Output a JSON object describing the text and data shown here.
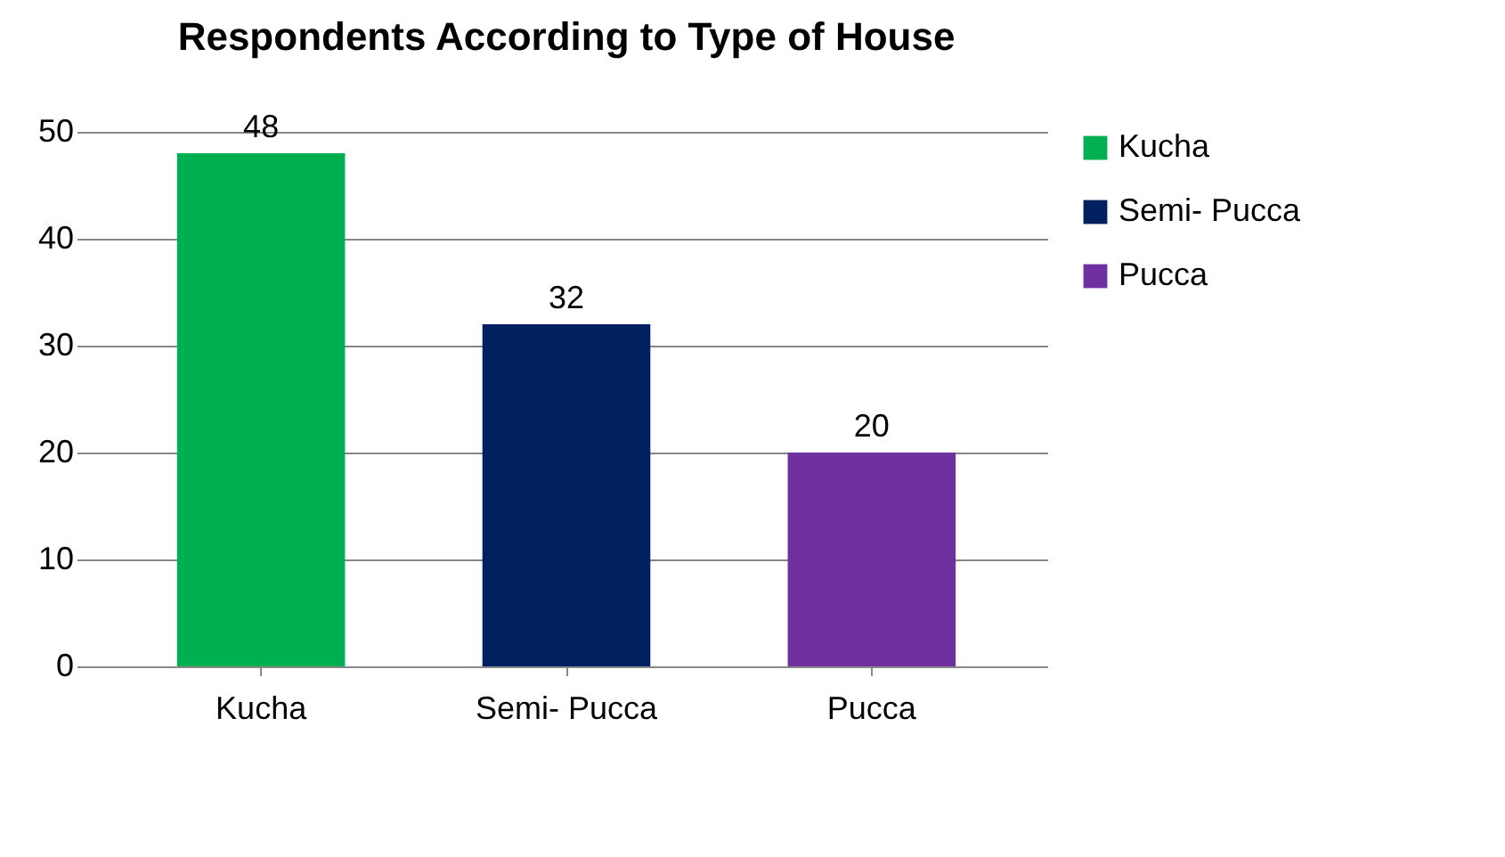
{
  "chart_data": {
    "type": "bar",
    "title": "Respondents According to Type of House",
    "categories": [
      "Kucha",
      "Semi- Pucca",
      "Pucca"
    ],
    "series": [
      {
        "name": "Kucha",
        "color": "#00b050",
        "values": [
          48,
          null,
          null
        ]
      },
      {
        "name": "Semi- Pucca",
        "color": "#002060",
        "values": [
          null,
          32,
          null
        ]
      },
      {
        "name": "Pucca",
        "color": "#7030a0",
        "values": [
          null,
          null,
          20
        ]
      }
    ],
    "ylim": [
      0,
      50
    ],
    "yticks": [
      0,
      10,
      20,
      30,
      40,
      50
    ],
    "grid": "y",
    "legend": "right",
    "data_labels": true
  }
}
